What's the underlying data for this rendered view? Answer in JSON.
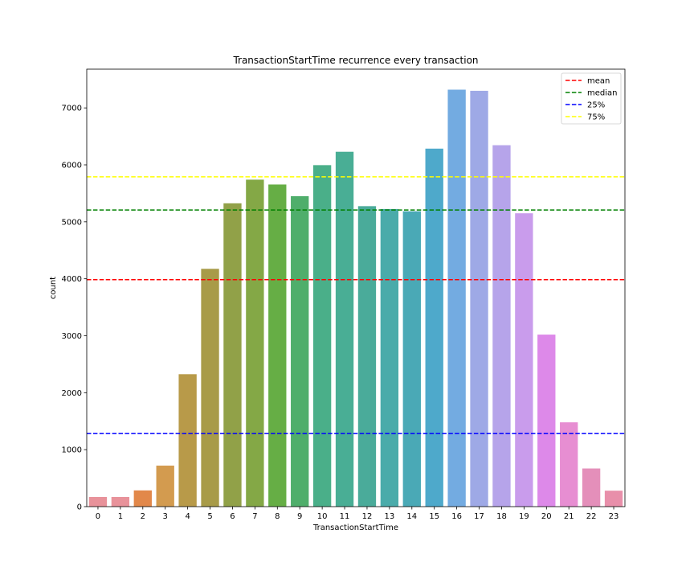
{
  "chart_data": {
    "type": "bar",
    "title": "TransactionStartTime recurrence every transaction",
    "xlabel": "TransactionStartTime",
    "ylabel": "count",
    "categories": [
      "0",
      "1",
      "2",
      "3",
      "4",
      "5",
      "6",
      "7",
      "8",
      "9",
      "10",
      "11",
      "12",
      "13",
      "14",
      "15",
      "16",
      "17",
      "18",
      "19",
      "20",
      "21",
      "22",
      "23"
    ],
    "values": [
      170,
      170,
      285,
      720,
      2325,
      4175,
      5325,
      5740,
      5655,
      5450,
      5995,
      6230,
      5275,
      5225,
      5185,
      6285,
      7320,
      7300,
      6345,
      5150,
      3020,
      1480,
      670,
      280
    ],
    "bar_colors": [
      "#e8929a",
      "#e8929a",
      "#e2884a",
      "#d39b4f",
      "#b89a49",
      "#a89b48",
      "#91a148",
      "#84a846",
      "#66ae45",
      "#4fae6b",
      "#4aaf89",
      "#49ae95",
      "#4aab9a",
      "#4aabaa",
      "#4aa9b6",
      "#4ea9cb",
      "#73abe1",
      "#9ea9e6",
      "#b6a4ea",
      "#c99cec",
      "#dd89e9",
      "#e78ed2",
      "#e48fba",
      "#e88faa"
    ],
    "yticks": [
      0,
      1000,
      2000,
      3000,
      4000,
      5000,
      6000,
      7000
    ],
    "ylim": [
      0,
      7680
    ],
    "reference_lines": [
      {
        "name": "mean",
        "value": 3985,
        "color": "#ff0000"
      },
      {
        "name": "median",
        "value": 5208,
        "color": "#008000"
      },
      {
        "name": "25%",
        "value": 1283,
        "color": "#0000ff"
      },
      {
        "name": "75%",
        "value": 5790,
        "color": "#ffff00"
      }
    ],
    "legend_placement": "top-right",
    "grid": false
  }
}
